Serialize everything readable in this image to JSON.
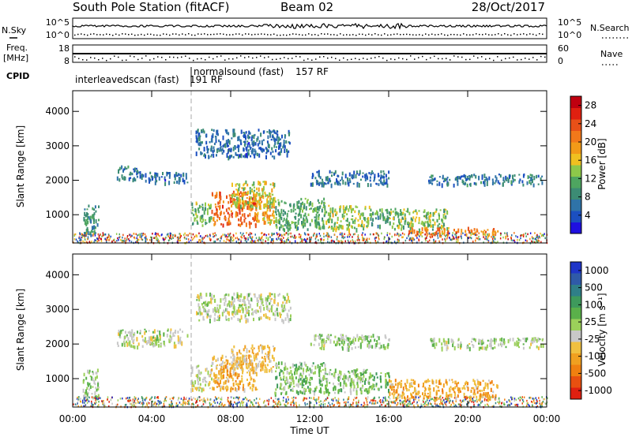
{
  "header": {
    "station": "South Pole Station (fitACF)",
    "beam": "Beam 02",
    "date": "28/Oct/2017"
  },
  "meta_panels": {
    "nsky_label": "N.Sky",
    "nsearch_label": "N.Search",
    "noise_ticks_left": [
      "10^5",
      "10^0"
    ],
    "noise_ticks_right": [
      "10^5",
      "10^0"
    ],
    "freq_label_1": "Freq.",
    "freq_label_2": "[MHz]",
    "freq_ticks": [
      "18",
      "8"
    ],
    "nave_label": "Nave",
    "nave_ticks": [
      "60",
      "0"
    ],
    "cpid_label": "CPID",
    "cpid_modes": [
      {
        "name": "interleavedscan (fast)",
        "rf": "191 RF",
        "start_hour": 0
      },
      {
        "name": "normalsound (fast)",
        "rf": "157 RF",
        "start_hour": 6
      }
    ]
  },
  "chart_data": [
    {
      "type": "heatmap",
      "quantity": "Power",
      "xlabel": "Time UT",
      "ylabel": "Slant Range [km]",
      "x_ticks": [
        "00:00",
        "04:00",
        "08:00",
        "12:00",
        "16:00",
        "20:00",
        "00:00"
      ],
      "x_range_hours": [
        0,
        24
      ],
      "y_range_km": [
        180,
        4600
      ],
      "y_ticks": [
        1000,
        2000,
        3000,
        4000
      ],
      "colorbar": {
        "label": "Power [dB]",
        "ticks": [
          "4",
          "8",
          "12",
          "16",
          "20",
          "24",
          "28"
        ],
        "range": [
          0,
          30
        ],
        "colors": [
          "#1f10e0",
          "#1b4fc0",
          "#2f73a8",
          "#3c8c74",
          "#4ea560",
          "#8dc84a",
          "#f0c020",
          "#f29a18",
          "#f2781a",
          "#e85018",
          "#e02010",
          "#c00010"
        ]
      },
      "echo_regions": [
        {
          "x": [
            0.5,
            1.3
          ],
          "y": [
            400,
            1300
          ],
          "v": 9
        },
        {
          "x": [
            2.2,
            3.5
          ],
          "y": [
            2050,
            2450
          ],
          "v": 7
        },
        {
          "x": [
            3.5,
            5.8
          ],
          "y": [
            1950,
            2250
          ],
          "v": 6
        },
        {
          "x": [
            6.0,
            7.0
          ],
          "y": [
            700,
            1400
          ],
          "v": 12
        },
        {
          "x": [
            7.0,
            9.3
          ],
          "y": [
            700,
            1700
          ],
          "v": 22
        },
        {
          "x": [
            8.0,
            10.2
          ],
          "y": [
            1200,
            2000
          ],
          "v": 15
        },
        {
          "x": [
            9.2,
            10.2
          ],
          "y": [
            800,
            1600
          ],
          "v": 18
        },
        {
          "x": [
            10.2,
            12.8
          ],
          "y": [
            600,
            1500
          ],
          "v": 11
        },
        {
          "x": [
            12.8,
            15.0
          ],
          "y": [
            600,
            1300
          ],
          "v": 14
        },
        {
          "x": [
            15.0,
            16.0
          ],
          "y": [
            700,
            1200
          ],
          "v": 10
        },
        {
          "x": [
            16.0,
            19.0
          ],
          "y": [
            600,
            1200
          ],
          "v": 13
        },
        {
          "x": [
            17.0,
            21.5
          ],
          "y": [
            450,
            650
          ],
          "v": 21
        },
        {
          "x": [
            6.2,
            11.0
          ],
          "y": [
            2700,
            3500
          ],
          "v": 6
        },
        {
          "x": [
            12.0,
            16.0
          ],
          "y": [
            1900,
            2300
          ],
          "v": 6
        },
        {
          "x": [
            18.0,
            23.8
          ],
          "y": [
            1900,
            2200
          ],
          "v": 7
        }
      ]
    },
    {
      "type": "heatmap",
      "quantity": "Velocity",
      "xlabel": "Time UT",
      "ylabel": "Slant Range [km]",
      "x_ticks": [
        "00:00",
        "04:00",
        "08:00",
        "12:00",
        "16:00",
        "20:00",
        "00:00"
      ],
      "x_range_hours": [
        0,
        24
      ],
      "y_range_km": [
        180,
        4600
      ],
      "y_ticks": [
        1000,
        2000,
        3000,
        4000
      ],
      "colorbar": {
        "label": "Velocity [m s⁻¹]",
        "ticks": [
          "1000",
          "500",
          "100",
          "25",
          "-25",
          "-100",
          "-500",
          "-1000"
        ],
        "range": [
          -1200,
          1200
        ],
        "colors": [
          "#1f35c8",
          "#2f5aa8",
          "#2f7f88",
          "#3e9a5c",
          "#5ab04a",
          "#9bd05a",
          "#c8c8c8",
          "#f0c040",
          "#f0a020",
          "#f08010",
          "#e85010",
          "#e02010"
        ]
      },
      "echo_regions": [
        {
          "x": [
            0.5,
            1.3
          ],
          "y": [
            400,
            1300
          ],
          "v": 100
        },
        {
          "x": [
            2.2,
            5.8
          ],
          "y": [
            1950,
            2450
          ],
          "v": 0
        },
        {
          "x": [
            6.0,
            7.0
          ],
          "y": [
            700,
            1400
          ],
          "v": -100
        },
        {
          "x": [
            7.0,
            9.3
          ],
          "y": [
            700,
            1700
          ],
          "v": -400
        },
        {
          "x": [
            8.0,
            10.2
          ],
          "y": [
            1200,
            2000
          ],
          "v": -300
        },
        {
          "x": [
            10.2,
            12.8
          ],
          "y": [
            600,
            1500
          ],
          "v": 200
        },
        {
          "x": [
            12.8,
            15.0
          ],
          "y": [
            600,
            1300
          ],
          "v": 150
        },
        {
          "x": [
            15.0,
            16.0
          ],
          "y": [
            700,
            1200
          ],
          "v": 300
        },
        {
          "x": [
            16.0,
            21.5
          ],
          "y": [
            450,
            1000
          ],
          "v": -450
        },
        {
          "x": [
            6.2,
            11.0
          ],
          "y": [
            2700,
            3500
          ],
          "v": 0
        },
        {
          "x": [
            12.0,
            16.0
          ],
          "y": [
            1900,
            2300
          ],
          "v": 80
        },
        {
          "x": [
            18.0,
            23.8
          ],
          "y": [
            1900,
            2200
          ],
          "v": 50
        }
      ]
    }
  ]
}
